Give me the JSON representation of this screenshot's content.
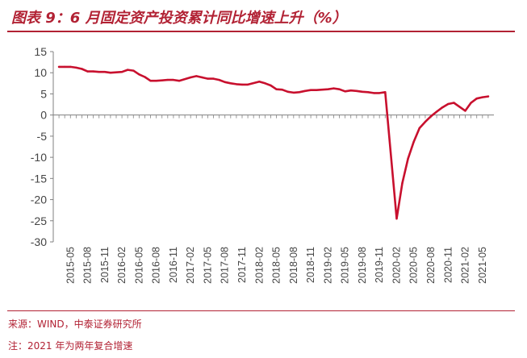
{
  "header": {
    "title": "图表 9：6 月固定资产投资累计同比增速上升（%）"
  },
  "footer": {
    "source": "来源：WIND，中泰证券研究所",
    "note": "注：2021 年为两年复合增速"
  },
  "colors": {
    "accent": "#b22234",
    "line": "#c8102e",
    "axis": "#808080"
  },
  "chart_data": {
    "type": "line",
    "title": "图表 9：6 月固定资产投资累计同比增速上升（%）",
    "xlabel": "",
    "ylabel": "",
    "ylim": [
      -30,
      15
    ],
    "yticks": [
      15,
      10,
      5,
      0,
      -5,
      -10,
      -15,
      -20,
      -25,
      -30
    ],
    "grid": false,
    "legend": "none",
    "xticks": [
      "2015-05",
      "2015-08",
      "2015-11",
      "2016-02",
      "2016-05",
      "2016-08",
      "2016-11",
      "2017-02",
      "2017-05",
      "2017-08",
      "2017-11",
      "2018-02",
      "2018-05",
      "2018-08",
      "2018-11",
      "2019-02",
      "2019-05",
      "2019-08",
      "2019-11",
      "2020-02",
      "2020-05",
      "2020-08",
      "2020-11",
      "2021-02",
      "2021-05"
    ],
    "series": [
      {
        "values": [
          {
            "x": "2015-03",
            "y": 11.4
          },
          {
            "x": "2015-04",
            "y": 11.4
          },
          {
            "x": "2015-05",
            "y": 11.4
          },
          {
            "x": "2015-06",
            "y": 11.2
          },
          {
            "x": "2015-07",
            "y": 10.9
          },
          {
            "x": "2015-08",
            "y": 10.3
          },
          {
            "x": "2015-09",
            "y": 10.3
          },
          {
            "x": "2015-10",
            "y": 10.2
          },
          {
            "x": "2015-11",
            "y": 10.2
          },
          {
            "x": "2015-12",
            "y": 10.0
          },
          {
            "x": "2016-02",
            "y": 10.2
          },
          {
            "x": "2016-03",
            "y": 10.7
          },
          {
            "x": "2016-04",
            "y": 10.5
          },
          {
            "x": "2016-05",
            "y": 9.6
          },
          {
            "x": "2016-06",
            "y": 9.0
          },
          {
            "x": "2016-07",
            "y": 8.1
          },
          {
            "x": "2016-08",
            "y": 8.1
          },
          {
            "x": "2016-09",
            "y": 8.2
          },
          {
            "x": "2016-10",
            "y": 8.3
          },
          {
            "x": "2016-11",
            "y": 8.3
          },
          {
            "x": "2016-12",
            "y": 8.1
          },
          {
            "x": "2017-02",
            "y": 8.9
          },
          {
            "x": "2017-03",
            "y": 9.2
          },
          {
            "x": "2017-04",
            "y": 8.9
          },
          {
            "x": "2017-05",
            "y": 8.6
          },
          {
            "x": "2017-06",
            "y": 8.6
          },
          {
            "x": "2017-07",
            "y": 8.3
          },
          {
            "x": "2017-08",
            "y": 7.8
          },
          {
            "x": "2017-09",
            "y": 7.5
          },
          {
            "x": "2017-10",
            "y": 7.3
          },
          {
            "x": "2017-11",
            "y": 7.2
          },
          {
            "x": "2017-12",
            "y": 7.2
          },
          {
            "x": "2018-02",
            "y": 7.9
          },
          {
            "x": "2018-03",
            "y": 7.5
          },
          {
            "x": "2018-04",
            "y": 7.0
          },
          {
            "x": "2018-05",
            "y": 6.1
          },
          {
            "x": "2018-06",
            "y": 6.0
          },
          {
            "x": "2018-07",
            "y": 5.5
          },
          {
            "x": "2018-08",
            "y": 5.3
          },
          {
            "x": "2018-09",
            "y": 5.4
          },
          {
            "x": "2018-10",
            "y": 5.7
          },
          {
            "x": "2018-11",
            "y": 5.9
          },
          {
            "x": "2018-12",
            "y": 5.9
          },
          {
            "x": "2019-02",
            "y": 6.1
          },
          {
            "x": "2019-03",
            "y": 6.3
          },
          {
            "x": "2019-04",
            "y": 6.1
          },
          {
            "x": "2019-05",
            "y": 5.6
          },
          {
            "x": "2019-06",
            "y": 5.8
          },
          {
            "x": "2019-07",
            "y": 5.7
          },
          {
            "x": "2019-08",
            "y": 5.5
          },
          {
            "x": "2019-09",
            "y": 5.4
          },
          {
            "x": "2019-10",
            "y": 5.2
          },
          {
            "x": "2019-11",
            "y": 5.2
          },
          {
            "x": "2019-12",
            "y": 5.4
          },
          {
            "x": "2020-02",
            "y": -24.5
          },
          {
            "x": "2020-03",
            "y": -16.1
          },
          {
            "x": "2020-04",
            "y": -10.3
          },
          {
            "x": "2020-05",
            "y": -6.3
          },
          {
            "x": "2020-06",
            "y": -3.1
          },
          {
            "x": "2020-07",
            "y": -1.6
          },
          {
            "x": "2020-08",
            "y": -0.3
          },
          {
            "x": "2020-09",
            "y": 0.8
          },
          {
            "x": "2020-10",
            "y": 1.8
          },
          {
            "x": "2020-11",
            "y": 2.6
          },
          {
            "x": "2020-12",
            "y": 2.9
          },
          {
            "x": "2021-02",
            "y": 1.0
          },
          {
            "x": "2021-03",
            "y": 2.9
          },
          {
            "x": "2021-04",
            "y": 3.9
          },
          {
            "x": "2021-05",
            "y": 4.2
          },
          {
            "x": "2021-06",
            "y": 4.4
          }
        ]
      }
    ]
  }
}
